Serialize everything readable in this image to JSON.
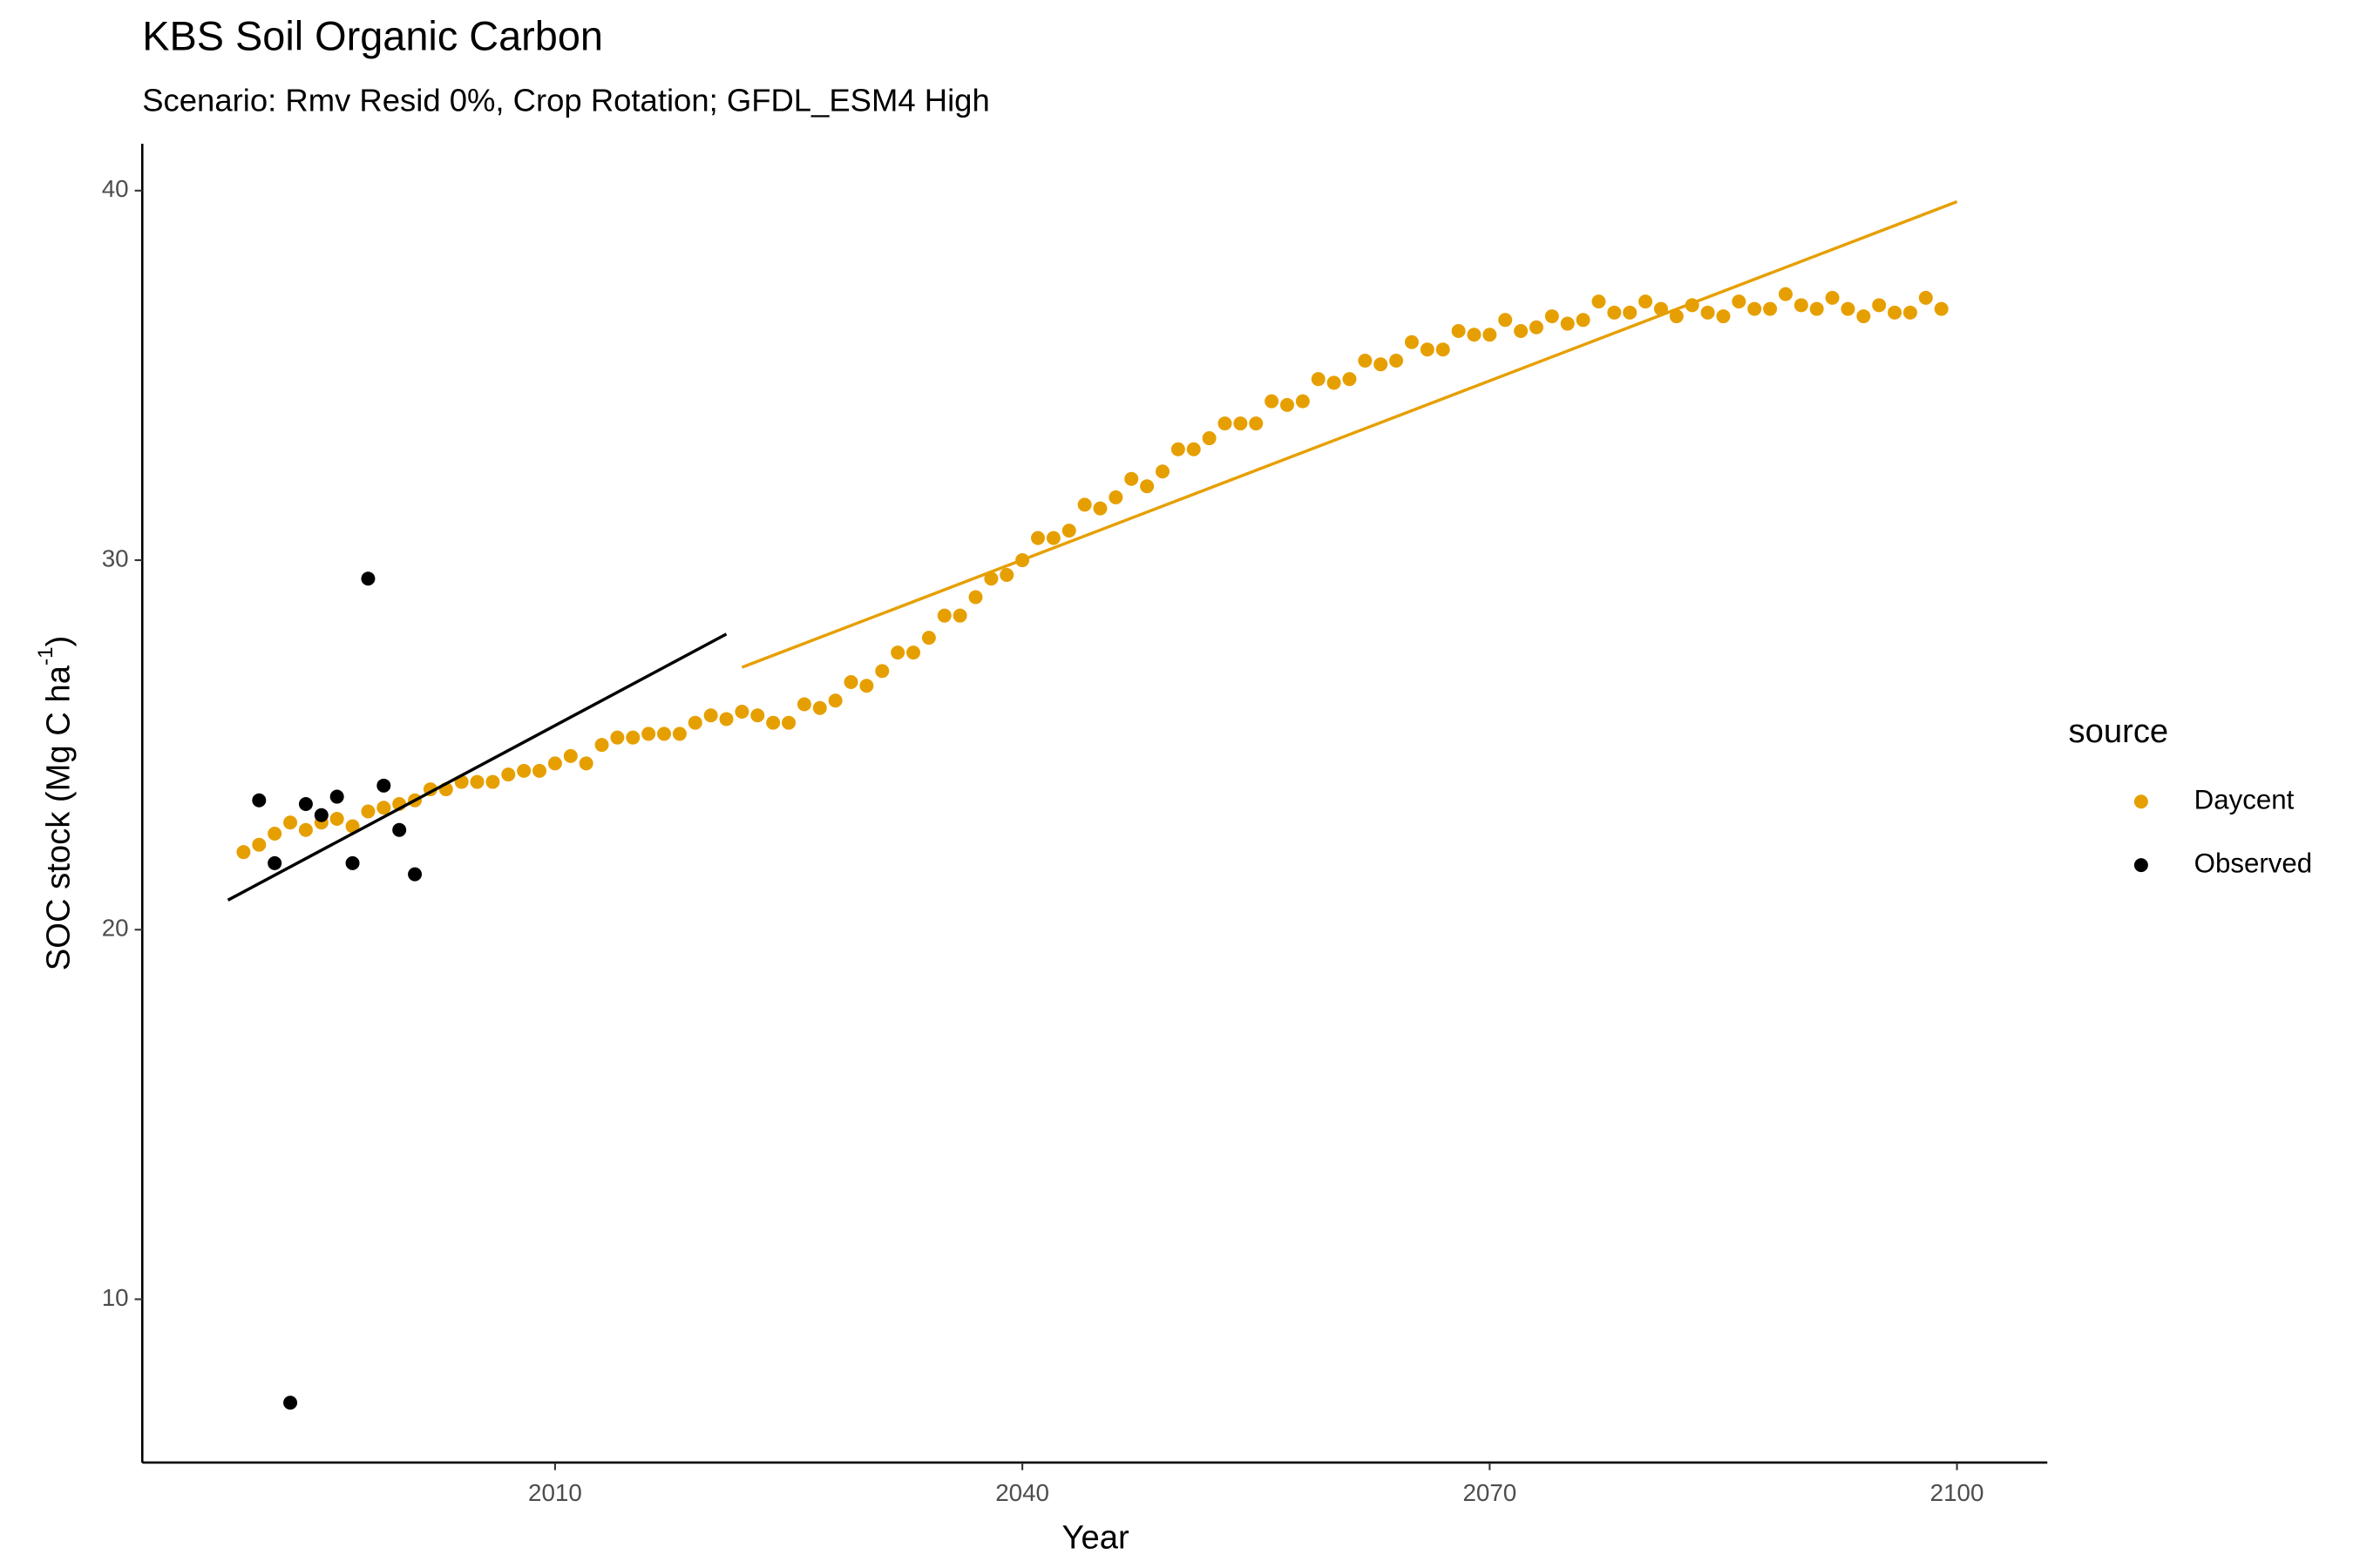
{
  "chart_data": {
    "type": "scatter",
    "title": "KBS Soil Organic Carbon",
    "subtitle": "Scenario: Rmv Resid 0%, Crop Rotation; GFDL_ESM4 High",
    "x_label": "Year",
    "y_label": "SOC stock (Mg C ha",
    "y_label_sup": "-1",
    "y_label_end": ")",
    "legend_title": "source",
    "xlim": [
      1983.5,
      2105.8
    ],
    "xticks": [
      2010,
      2040,
      2070,
      2100
    ],
    "ylim": [
      5.58,
      41.27
    ],
    "yticks": [
      10,
      20,
      30,
      40
    ],
    "grid": false,
    "series": [
      {
        "name": "Daycent",
        "color": "#E69F00",
        "x": [
          1990,
          1991,
          1992,
          1993,
          1994,
          1995,
          1996,
          1997,
          1998,
          1999,
          2000,
          2001,
          2002,
          2003,
          2004,
          2005,
          2006,
          2007,
          2008,
          2009,
          2010,
          2011,
          2012,
          2013,
          2014,
          2015,
          2016,
          2017,
          2018,
          2019,
          2020,
          2021,
          2022,
          2023,
          2024,
          2025,
          2026,
          2027,
          2028,
          2029,
          2030,
          2031,
          2032,
          2033,
          2034,
          2035,
          2036,
          2037,
          2038,
          2039,
          2040,
          2041,
          2042,
          2043,
          2044,
          2045,
          2046,
          2047,
          2048,
          2049,
          2050,
          2051,
          2052,
          2053,
          2054,
          2055,
          2056,
          2057,
          2058,
          2059,
          2060,
          2061,
          2062,
          2063,
          2064,
          2065,
          2066,
          2067,
          2068,
          2069,
          2070,
          2071,
          2072,
          2073,
          2074,
          2075,
          2076,
          2077,
          2078,
          2079,
          2080,
          2081,
          2082,
          2083,
          2084,
          2085,
          2086,
          2087,
          2088,
          2089,
          2090,
          2091,
          2092,
          2093,
          2094,
          2095,
          2096,
          2097,
          2098,
          2099
        ],
        "values": [
          22.1,
          22.3,
          22.6,
          22.9,
          22.7,
          22.9,
          23.0,
          22.8,
          23.2,
          23.3,
          23.4,
          23.5,
          23.8,
          23.8,
          24.0,
          24.0,
          24.0,
          24.2,
          24.3,
          24.3,
          24.5,
          24.7,
          24.5,
          25.0,
          25.2,
          25.2,
          25.3,
          25.3,
          25.3,
          25.6,
          25.8,
          25.7,
          25.9,
          25.8,
          25.6,
          25.6,
          26.1,
          26.0,
          26.2,
          26.7,
          26.6,
          27.0,
          27.5,
          27.5,
          27.9,
          28.5,
          28.5,
          29.0,
          29.5,
          29.6,
          30.0,
          30.6,
          30.6,
          30.8,
          31.5,
          31.4,
          31.7,
          32.2,
          32.0,
          32.4,
          33.0,
          33.0,
          33.3,
          33.7,
          33.7,
          33.7,
          34.3,
          34.2,
          34.3,
          34.9,
          34.8,
          34.9,
          35.4,
          35.3,
          35.4,
          35.9,
          35.7,
          35.7,
          36.2,
          36.1,
          36.1,
          36.5,
          36.2,
          36.3,
          36.6,
          36.4,
          36.5,
          37.0,
          36.7,
          36.7,
          37.0,
          36.8,
          36.6,
          36.9,
          36.7,
          36.6,
          37.0,
          36.8,
          36.8,
          37.2,
          36.9,
          36.8,
          37.1,
          36.8,
          36.6,
          36.9,
          36.7,
          36.7,
          37.1,
          36.8
        ],
        "fit": {
          "x": [
            2022,
            2100
          ],
          "values": [
            27.1,
            39.7
          ]
        }
      },
      {
        "name": "Observed",
        "color": "#000000",
        "x": [
          1991,
          1992,
          1993,
          1994,
          1995,
          1996,
          1997,
          1998,
          1999,
          2000,
          2001
        ],
        "values": [
          23.5,
          21.8,
          7.2,
          23.4,
          23.1,
          23.6,
          21.8,
          29.5,
          23.9,
          22.7,
          21.5
        ],
        "fit": {
          "x": [
            1989,
            2021
          ],
          "values": [
            20.8,
            28.0
          ]
        }
      }
    ]
  }
}
